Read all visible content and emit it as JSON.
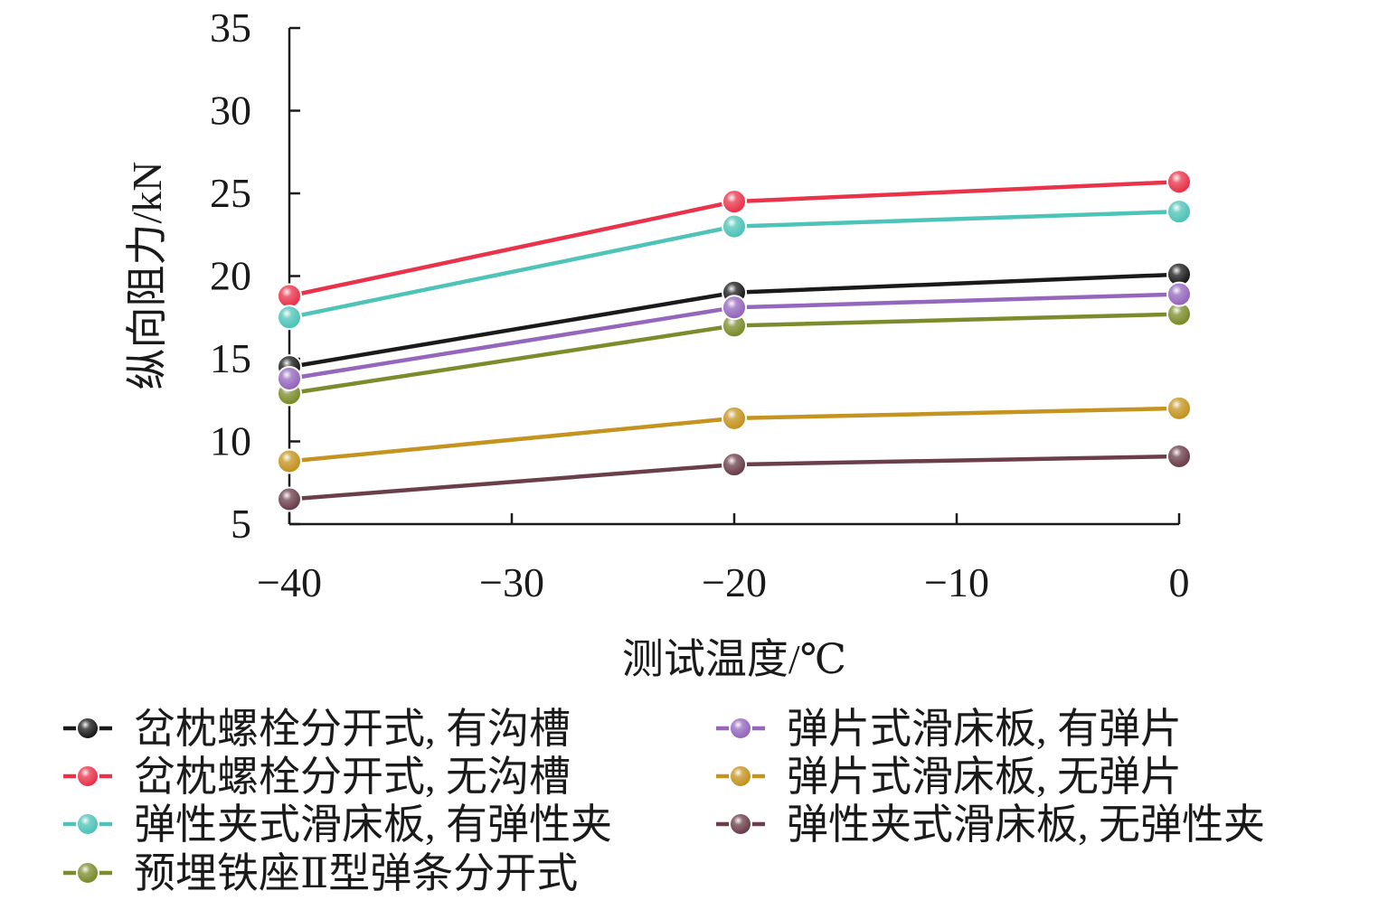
{
  "chart_data": {
    "type": "line",
    "xlabel": "测试温度/℃",
    "ylabel": "纵向阻力/kN",
    "xlim": [
      -40,
      0
    ],
    "ylim": [
      5,
      35
    ],
    "x": [
      -40,
      -20,
      0
    ],
    "x_ticks": [
      -40,
      -30,
      -20,
      -10,
      0
    ],
    "x_tick_labels": [
      "−40",
      "−30",
      "−20",
      "−10",
      "0"
    ],
    "y_ticks": [
      5,
      10,
      15,
      20,
      25,
      30,
      35
    ],
    "y_tick_labels": [
      "5",
      "10",
      "15",
      "20",
      "25",
      "30",
      "35"
    ],
    "grid": false,
    "legend_position": "bottom",
    "series": [
      {
        "name": "岔枕螺栓分开式, 有沟槽",
        "color": "#1a1a1a",
        "values": [
          14.5,
          19.0,
          20.1
        ]
      },
      {
        "name": "岔枕螺栓分开式, 无沟槽",
        "color": "#e8334a",
        "values": [
          18.8,
          24.5,
          25.7
        ]
      },
      {
        "name": "弹性夹式滑床板, 有弹性夹",
        "color": "#4ec3b8",
        "values": [
          17.5,
          23.0,
          23.9
        ]
      },
      {
        "name": "预埋铁座Ⅱ型弹条分开式",
        "color": "#7b8c2c",
        "values": [
          12.9,
          17.0,
          17.7
        ]
      },
      {
        "name": "弹片式滑床板, 有弹片",
        "color": "#9467bd",
        "values": [
          13.8,
          18.1,
          18.9
        ]
      },
      {
        "name": "弹片式滑床板, 无弹片",
        "color": "#c49320",
        "values": [
          8.8,
          11.4,
          12.0
        ]
      },
      {
        "name": "弹性夹式滑床板, 无弹性夹",
        "color": "#6b3f4a",
        "values": [
          6.5,
          8.6,
          9.1
        ]
      }
    ]
  }
}
